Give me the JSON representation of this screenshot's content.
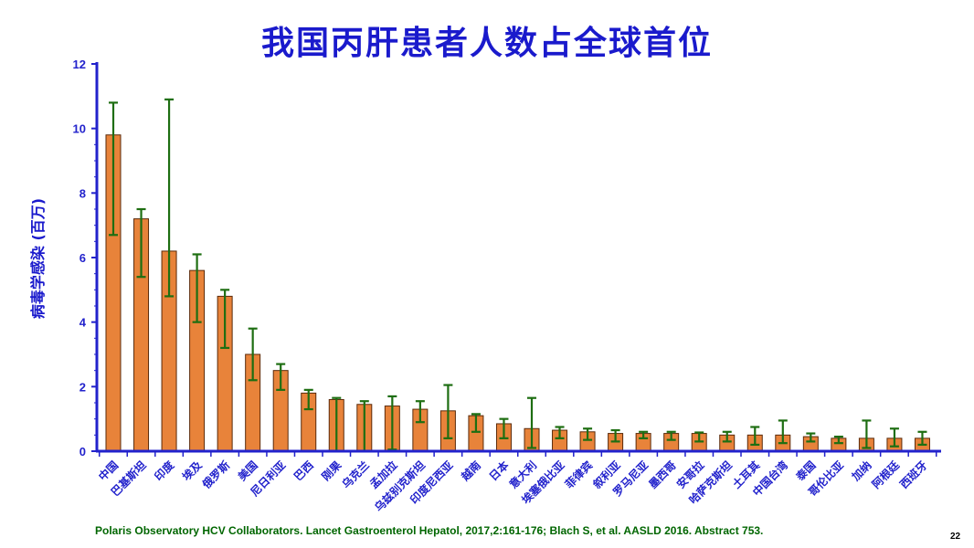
{
  "colors": {
    "title": "#1a1acc",
    "axis": "#2222cc",
    "bar_fill": "#e8833a",
    "bar_stroke": "#5a2a0a",
    "error_bar": "#1e6e12",
    "citation": "#006600"
  },
  "citation": "Polaris Observatory HCV Collaborators. Lancet Gastroenterol Hepatol, 2017,2:161-176; Blach S, et al. AASLD 2016. Abstract 753.",
  "page_number": "22",
  "chart_data": {
    "type": "bar",
    "title": "我国丙肝患者人数占全球首位",
    "ylabel": "病毒学感染 (百万)",
    "xlabel": "",
    "ylim": [
      0,
      12
    ],
    "yticks": [
      0,
      2,
      4,
      6,
      8,
      10,
      12
    ],
    "grid": false,
    "legend": "none",
    "categories": [
      "中国",
      "巴基斯坦",
      "印度",
      "埃及",
      "俄罗斯",
      "美国",
      "尼日利亚",
      "巴西",
      "刚果",
      "乌克兰",
      "孟加拉",
      "乌兹别克斯坦",
      "印度尼西亚",
      "越南",
      "日本",
      "意大利",
      "埃塞俄比亚",
      "菲律宾",
      "叙利亚",
      "罗马尼亚",
      "墨西哥",
      "安哥拉",
      "哈萨克斯坦",
      "土耳其",
      "中国台湾",
      "泰国",
      "哥伦比亚",
      "加纳",
      "阿根廷",
      "西班牙"
    ],
    "values": [
      9.8,
      7.2,
      6.2,
      5.6,
      4.8,
      3.0,
      2.5,
      1.8,
      1.6,
      1.45,
      1.4,
      1.3,
      1.25,
      1.1,
      0.85,
      0.7,
      0.65,
      0.6,
      0.55,
      0.55,
      0.55,
      0.55,
      0.5,
      0.5,
      0.5,
      0.45,
      0.4,
      0.4,
      0.4,
      0.4
    ],
    "error_low": [
      6.7,
      5.4,
      4.8,
      4.0,
      3.2,
      2.2,
      1.9,
      1.3,
      0.0,
      0.0,
      0.05,
      0.9,
      0.4,
      0.6,
      0.4,
      0.1,
      0.4,
      0.35,
      0.3,
      0.4,
      0.35,
      0.3,
      0.3,
      0.2,
      0.25,
      0.3,
      0.25,
      0.1,
      0.15,
      0.2
    ],
    "error_high": [
      10.8,
      7.5,
      10.9,
      6.1,
      5.0,
      3.8,
      2.7,
      1.9,
      1.65,
      1.55,
      1.7,
      1.55,
      2.05,
      1.15,
      1.0,
      1.65,
      0.75,
      0.7,
      0.65,
      0.6,
      0.6,
      0.58,
      0.6,
      0.75,
      0.95,
      0.55,
      0.45,
      0.95,
      0.7,
      0.6
    ]
  }
}
